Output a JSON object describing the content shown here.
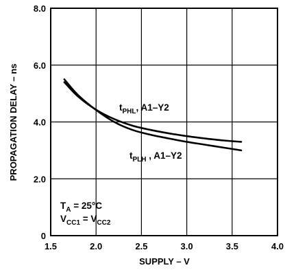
{
  "chart_data": {
    "type": "line",
    "xlabel": "SUPPLY – V",
    "ylabel": "PROPAGATION DELAY – ns",
    "xlim": [
      1.5,
      4.0
    ],
    "ylim": [
      0,
      8.0
    ],
    "x_ticks": [
      "1.5",
      "2.0",
      "2.5",
      "3.0",
      "3.5",
      "4.0"
    ],
    "y_ticks": [
      "0",
      "2.0",
      "4.0",
      "6.0",
      "8.0"
    ],
    "grid": true,
    "conditions": {
      "ta": {
        "main": "T",
        "sub": "A",
        "rest": " = 25°C"
      },
      "vcc": {
        "v1": "V",
        "s1": "CC1",
        "eq": " = V",
        "s2": "CC2"
      }
    },
    "series": [
      {
        "name": "tPHL, A1–Y2",
        "label": {
          "main": "t",
          "sub": "PHL",
          "rest": ", A1–Y2"
        },
        "x": [
          1.65,
          1.8,
          2.0,
          2.2,
          2.4,
          2.6,
          2.8,
          3.0,
          3.2,
          3.4,
          3.6
        ],
        "y": [
          5.4,
          4.9,
          4.43,
          4.1,
          3.87,
          3.72,
          3.6,
          3.5,
          3.42,
          3.35,
          3.3
        ]
      },
      {
        "name": "tPLH, A1–Y2",
        "label": {
          "main": "t",
          "sub": "PLH",
          "rest": " , A1–Y2"
        },
        "x": [
          1.65,
          1.8,
          2.0,
          2.2,
          2.4,
          2.6,
          2.8,
          3.0,
          3.2,
          3.4,
          3.6
        ],
        "y": [
          5.5,
          4.95,
          4.42,
          4.0,
          3.72,
          3.55,
          3.42,
          3.3,
          3.2,
          3.1,
          3.0
        ]
      }
    ]
  }
}
